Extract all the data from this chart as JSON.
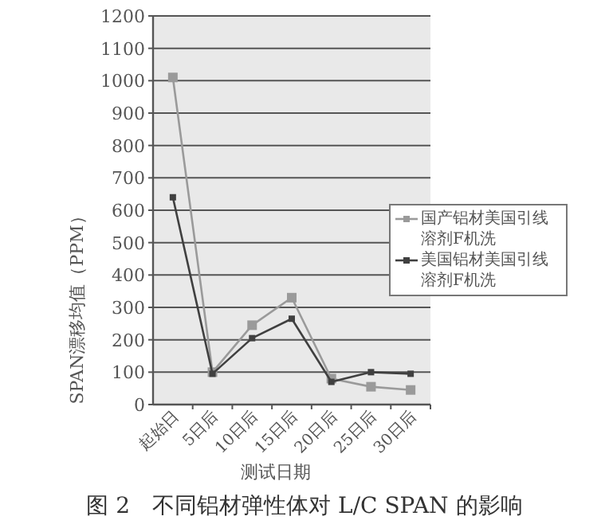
{
  "chart_data": {
    "type": "line",
    "title": "图 2　不同铝材弹性体对 L/C SPAN 的影响",
    "xlabel": "测试日期",
    "ylabel": "SPAN漂移均值（PPM）",
    "categories": [
      "起始日",
      "5日后",
      "10日后",
      "15日后",
      "20日后",
      "25日后",
      "30日后"
    ],
    "series": [
      {
        "name": "国产铝材美国引线溶剂F机洗",
        "color": "#9a9a9a",
        "values": [
          1010,
          100,
          245,
          330,
          80,
          55,
          45
        ]
      },
      {
        "name": "美国铝材美国引线溶剂F机洗",
        "color": "#404040",
        "values": [
          640,
          95,
          205,
          265,
          70,
          100,
          95
        ]
      }
    ],
    "ylim": [
      0,
      1200
    ],
    "yticks": [
      0,
      100,
      200,
      300,
      400,
      500,
      600,
      700,
      800,
      900,
      1000,
      1100,
      1200
    ],
    "grid": "y",
    "legend": "right",
    "marker": "square",
    "line_style": "solid"
  }
}
